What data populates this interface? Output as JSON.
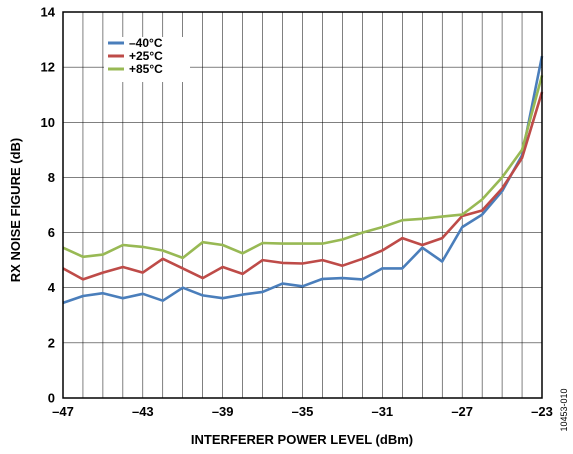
{
  "figure_id": "10453-010",
  "chart_data": {
    "type": "line",
    "title": "",
    "xlabel": "INTERFERER POWER LEVEL (dBm)",
    "ylabel": "RX NOISE FIGURE (dB)",
    "xlim": [
      -47,
      -23
    ],
    "ylim": [
      0,
      14
    ],
    "x_ticks": [
      -47,
      -43,
      -39,
      -35,
      -31,
      -27,
      -23
    ],
    "x_tick_labels": [
      "–47",
      "–43",
      "–39",
      "–35",
      "–31",
      "–27",
      "–23"
    ],
    "y_ticks": [
      0,
      2,
      4,
      6,
      8,
      10,
      12,
      14
    ],
    "y_tick_labels": [
      "0",
      "2",
      "4",
      "6",
      "8",
      "10",
      "12",
      "14"
    ],
    "grid": true,
    "legend_position": "top-left",
    "series": [
      {
        "name": "–40°C",
        "color": "#4a7ebb",
        "x": [
          -47,
          -46,
          -45,
          -44,
          -43,
          -42,
          -41,
          -40,
          -39,
          -38,
          -37,
          -36,
          -35,
          -34,
          -33,
          -32,
          -31,
          -30,
          -29,
          -28,
          -27,
          -26,
          -25,
          -24,
          -23
        ],
        "y": [
          3.45,
          3.7,
          3.8,
          3.62,
          3.78,
          3.53,
          4.0,
          3.72,
          3.62,
          3.75,
          3.85,
          4.15,
          4.05,
          4.32,
          4.35,
          4.3,
          4.7,
          4.7,
          5.45,
          4.95,
          6.2,
          6.65,
          7.5,
          8.8,
          12.4
        ]
      },
      {
        "name": "+25°C",
        "color": "#be4b48",
        "x": [
          -47,
          -46,
          -45,
          -44,
          -43,
          -42,
          -41,
          -40,
          -39,
          -38,
          -37,
          -36,
          -35,
          -34,
          -33,
          -32,
          -31,
          -30,
          -29,
          -28,
          -27,
          -26,
          -25,
          -24,
          -23
        ],
        "y": [
          4.7,
          4.3,
          4.55,
          4.75,
          4.55,
          5.05,
          4.7,
          4.35,
          4.75,
          4.5,
          5.0,
          4.9,
          4.88,
          5.0,
          4.8,
          5.05,
          5.35,
          5.8,
          5.55,
          5.8,
          6.6,
          6.8,
          7.6,
          8.7,
          11.1
        ]
      },
      {
        "name": "+85°C",
        "color": "#98b954",
        "x": [
          -47,
          -46,
          -45,
          -44,
          -43,
          -42,
          -41,
          -40,
          -39,
          -38,
          -37,
          -36,
          -35,
          -34,
          -33,
          -32,
          -31,
          -30,
          -29,
          -28,
          -27,
          -26,
          -25,
          -24,
          -23
        ],
        "y": [
          5.45,
          5.12,
          5.2,
          5.55,
          5.48,
          5.35,
          5.08,
          5.65,
          5.55,
          5.25,
          5.62,
          5.6,
          5.6,
          5.6,
          5.75,
          6.0,
          6.2,
          6.45,
          6.5,
          6.58,
          6.65,
          7.2,
          8.0,
          9.0,
          11.7
        ]
      }
    ]
  }
}
